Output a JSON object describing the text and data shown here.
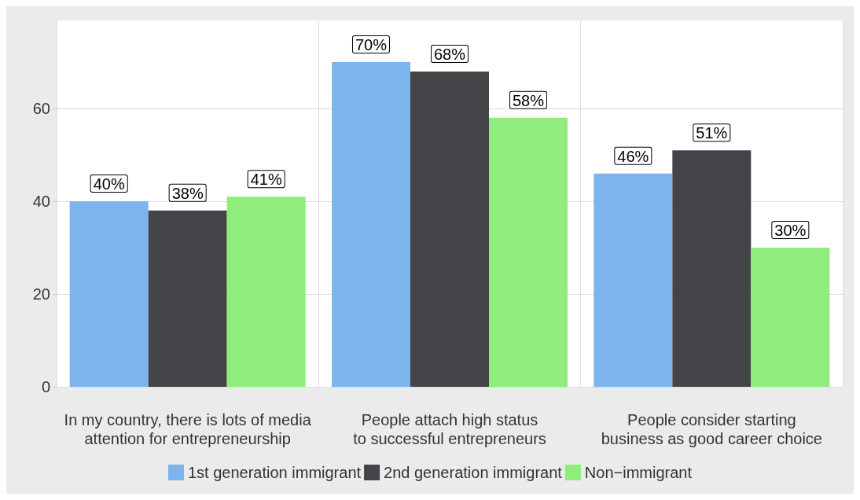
{
  "chart_data": {
    "type": "bar",
    "categories": [
      "In my country, there is lots of media\nattention for entrepreneurship",
      "People attach high status\nto successful entrepreneurs",
      "People consider starting\nbusiness as good career choice"
    ],
    "series": [
      {
        "name": "1st generation immigrant",
        "color": "#7cb5ec",
        "values": [
          40,
          70,
          46
        ],
        "value_labels": [
          "40%",
          "70%",
          "46%"
        ]
      },
      {
        "name": "2nd generation immigrant",
        "color": "#434348",
        "values": [
          38,
          68,
          51
        ],
        "value_labels": [
          "38%",
          "68%",
          "51%"
        ]
      },
      {
        "name": "Non−immigrant",
        "color": "#90ed7d",
        "values": [
          41,
          58,
          30
        ],
        "value_labels": [
          "41%",
          "58%",
          "30%"
        ]
      }
    ],
    "ylim": [
      0,
      79
    ],
    "yticks": [
      0,
      20,
      40,
      60
    ],
    "grid": true,
    "legend": "bottom"
  }
}
